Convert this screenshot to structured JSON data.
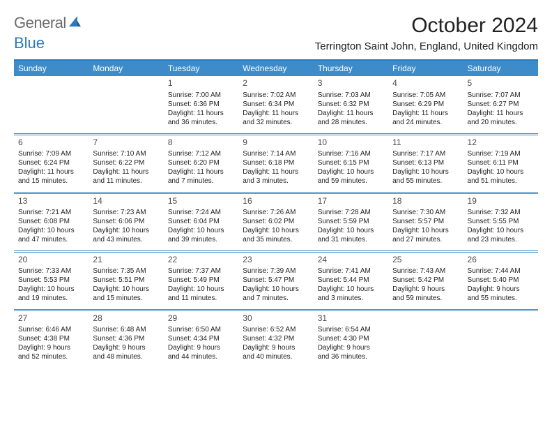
{
  "logo": {
    "part1": "General",
    "part2": "Blue"
  },
  "title": "October 2024",
  "location": "Terrington Saint John, England, United Kingdom",
  "theme": {
    "header_bg": "#3d8cc9",
    "header_text": "#ffffff",
    "border": "#2a7ab9",
    "page_bg": "#ffffff",
    "text": "#000000",
    "logo_gray": "#6b6b6b",
    "logo_blue": "#2a7ab9"
  },
  "columns": [
    "Sunday",
    "Monday",
    "Tuesday",
    "Wednesday",
    "Thursday",
    "Friday",
    "Saturday"
  ],
  "weeks": [
    [
      null,
      null,
      {
        "d": "1",
        "sr": "Sunrise: 7:00 AM",
        "ss": "Sunset: 6:36 PM",
        "dl1": "Daylight: 11 hours",
        "dl2": "and 36 minutes."
      },
      {
        "d": "2",
        "sr": "Sunrise: 7:02 AM",
        "ss": "Sunset: 6:34 PM",
        "dl1": "Daylight: 11 hours",
        "dl2": "and 32 minutes."
      },
      {
        "d": "3",
        "sr": "Sunrise: 7:03 AM",
        "ss": "Sunset: 6:32 PM",
        "dl1": "Daylight: 11 hours",
        "dl2": "and 28 minutes."
      },
      {
        "d": "4",
        "sr": "Sunrise: 7:05 AM",
        "ss": "Sunset: 6:29 PM",
        "dl1": "Daylight: 11 hours",
        "dl2": "and 24 minutes."
      },
      {
        "d": "5",
        "sr": "Sunrise: 7:07 AM",
        "ss": "Sunset: 6:27 PM",
        "dl1": "Daylight: 11 hours",
        "dl2": "and 20 minutes."
      }
    ],
    [
      {
        "d": "6",
        "sr": "Sunrise: 7:09 AM",
        "ss": "Sunset: 6:24 PM",
        "dl1": "Daylight: 11 hours",
        "dl2": "and 15 minutes."
      },
      {
        "d": "7",
        "sr": "Sunrise: 7:10 AM",
        "ss": "Sunset: 6:22 PM",
        "dl1": "Daylight: 11 hours",
        "dl2": "and 11 minutes."
      },
      {
        "d": "8",
        "sr": "Sunrise: 7:12 AM",
        "ss": "Sunset: 6:20 PM",
        "dl1": "Daylight: 11 hours",
        "dl2": "and 7 minutes."
      },
      {
        "d": "9",
        "sr": "Sunrise: 7:14 AM",
        "ss": "Sunset: 6:18 PM",
        "dl1": "Daylight: 11 hours",
        "dl2": "and 3 minutes."
      },
      {
        "d": "10",
        "sr": "Sunrise: 7:16 AM",
        "ss": "Sunset: 6:15 PM",
        "dl1": "Daylight: 10 hours",
        "dl2": "and 59 minutes."
      },
      {
        "d": "11",
        "sr": "Sunrise: 7:17 AM",
        "ss": "Sunset: 6:13 PM",
        "dl1": "Daylight: 10 hours",
        "dl2": "and 55 minutes."
      },
      {
        "d": "12",
        "sr": "Sunrise: 7:19 AM",
        "ss": "Sunset: 6:11 PM",
        "dl1": "Daylight: 10 hours",
        "dl2": "and 51 minutes."
      }
    ],
    [
      {
        "d": "13",
        "sr": "Sunrise: 7:21 AM",
        "ss": "Sunset: 6:08 PM",
        "dl1": "Daylight: 10 hours",
        "dl2": "and 47 minutes."
      },
      {
        "d": "14",
        "sr": "Sunrise: 7:23 AM",
        "ss": "Sunset: 6:06 PM",
        "dl1": "Daylight: 10 hours",
        "dl2": "and 43 minutes."
      },
      {
        "d": "15",
        "sr": "Sunrise: 7:24 AM",
        "ss": "Sunset: 6:04 PM",
        "dl1": "Daylight: 10 hours",
        "dl2": "and 39 minutes."
      },
      {
        "d": "16",
        "sr": "Sunrise: 7:26 AM",
        "ss": "Sunset: 6:02 PM",
        "dl1": "Daylight: 10 hours",
        "dl2": "and 35 minutes."
      },
      {
        "d": "17",
        "sr": "Sunrise: 7:28 AM",
        "ss": "Sunset: 5:59 PM",
        "dl1": "Daylight: 10 hours",
        "dl2": "and 31 minutes."
      },
      {
        "d": "18",
        "sr": "Sunrise: 7:30 AM",
        "ss": "Sunset: 5:57 PM",
        "dl1": "Daylight: 10 hours",
        "dl2": "and 27 minutes."
      },
      {
        "d": "19",
        "sr": "Sunrise: 7:32 AM",
        "ss": "Sunset: 5:55 PM",
        "dl1": "Daylight: 10 hours",
        "dl2": "and 23 minutes."
      }
    ],
    [
      {
        "d": "20",
        "sr": "Sunrise: 7:33 AM",
        "ss": "Sunset: 5:53 PM",
        "dl1": "Daylight: 10 hours",
        "dl2": "and 19 minutes."
      },
      {
        "d": "21",
        "sr": "Sunrise: 7:35 AM",
        "ss": "Sunset: 5:51 PM",
        "dl1": "Daylight: 10 hours",
        "dl2": "and 15 minutes."
      },
      {
        "d": "22",
        "sr": "Sunrise: 7:37 AM",
        "ss": "Sunset: 5:49 PM",
        "dl1": "Daylight: 10 hours",
        "dl2": "and 11 minutes."
      },
      {
        "d": "23",
        "sr": "Sunrise: 7:39 AM",
        "ss": "Sunset: 5:47 PM",
        "dl1": "Daylight: 10 hours",
        "dl2": "and 7 minutes."
      },
      {
        "d": "24",
        "sr": "Sunrise: 7:41 AM",
        "ss": "Sunset: 5:44 PM",
        "dl1": "Daylight: 10 hours",
        "dl2": "and 3 minutes."
      },
      {
        "d": "25",
        "sr": "Sunrise: 7:43 AM",
        "ss": "Sunset: 5:42 PM",
        "dl1": "Daylight: 9 hours",
        "dl2": "and 59 minutes."
      },
      {
        "d": "26",
        "sr": "Sunrise: 7:44 AM",
        "ss": "Sunset: 5:40 PM",
        "dl1": "Daylight: 9 hours",
        "dl2": "and 55 minutes."
      }
    ],
    [
      {
        "d": "27",
        "sr": "Sunrise: 6:46 AM",
        "ss": "Sunset: 4:38 PM",
        "dl1": "Daylight: 9 hours",
        "dl2": "and 52 minutes."
      },
      {
        "d": "28",
        "sr": "Sunrise: 6:48 AM",
        "ss": "Sunset: 4:36 PM",
        "dl1": "Daylight: 9 hours",
        "dl2": "and 48 minutes."
      },
      {
        "d": "29",
        "sr": "Sunrise: 6:50 AM",
        "ss": "Sunset: 4:34 PM",
        "dl1": "Daylight: 9 hours",
        "dl2": "and 44 minutes."
      },
      {
        "d": "30",
        "sr": "Sunrise: 6:52 AM",
        "ss": "Sunset: 4:32 PM",
        "dl1": "Daylight: 9 hours",
        "dl2": "and 40 minutes."
      },
      {
        "d": "31",
        "sr": "Sunrise: 6:54 AM",
        "ss": "Sunset: 4:30 PM",
        "dl1": "Daylight: 9 hours",
        "dl2": "and 36 minutes."
      },
      null,
      null
    ]
  ]
}
